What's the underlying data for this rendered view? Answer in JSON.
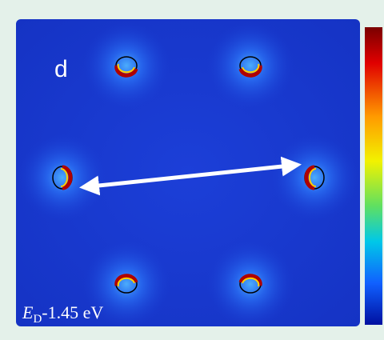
{
  "panel": {
    "label": "d",
    "energy_label": {
      "symbol": "E",
      "subscript": "D",
      "text": "-1.45 eV"
    }
  }
}
